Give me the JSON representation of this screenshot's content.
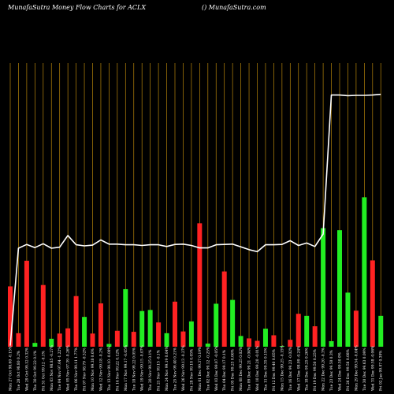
{
  "title_left": "MunafaSutra  Money Flow  Charts for ACLX",
  "title_right": "() MunafaSutra.com",
  "chart_data": {
    "type": "bar",
    "title": "MunafaSutra  Money Flow  Charts for ACLX",
    "subtitle": "() MunafaSutra.com",
    "ylim": [
      0,
      100
    ],
    "grid": true,
    "colors": {
      "up": "#22ee22",
      "down": "#ff2222",
      "line": "#ffffff",
      "grid": "#b8860b",
      "bg": "#000000"
    },
    "categories": [
      "Fri 02 Jan 99.97 0.39%",
      "Wed 31 Dec 99.58 -0.06%",
      "Tue 30 Dec 99.63 0.09%",
      "Mon 29 Dec 99.54 -0.04%",
      "Fri 26 Dec 99.58 0.08%",
      "Wed 24 Dec 99.50 0%",
      "Tue 23 Dec 99.50 0.3%",
      "Mon 22 Dec 99.20 -0.3%",
      "Fri 19 Dec 99.50 0.25%",
      "Thu 18 Dec 99.25 0.26%",
      "Wed 17 Dec 98.99 -0.24%",
      "Tue 16 Dec 99.23 -0.02%",
      "Mon 15 Dec 99.25 -0.15%",
      "Fri 12 Dec 99.40 0.05%",
      "Thu 11 Dec 99.35 0.15%",
      "Wed 10 Dec 99.20 -0.01%",
      "Tue 09 Dec 99.21 -0.04%",
      "Mon 08 Dec 99.25 0.02%",
      "Fri 05 Dec 99.23 0.06%",
      "Thu 04 Dec 99.17 0.1%",
      "Wed 03 Dec 99.07 -0.05%",
      "Tue 02 Dec 99.12 -0.25%",
      "Mon 01 Dec 99.37 0.19%",
      "Fri 28 Nov 99.18 0.05%",
      "Wed 26 Nov 99.13 -0.27%",
      "Tue 25 Nov 99.40 0.21%",
      "Mon 24 Nov 99.19 0.04%",
      "Fri 21 Nov 99.15 -0.1%",
      "Thu 20 Nov 99.25 0.1%",
      "Wed 19 Nov 99.15 -0.07%",
      "Tue 18 Nov 99.22 0.05%",
      "Mon 17 Nov 99.17 -0.05%",
      "Fri 14 Nov 99.22 0.12%",
      "Thu 13 Nov 99.10 -0.08%",
      "Wed 12 Nov 99.18 -0.2%",
      "Mon 10 Nov 99.38 0.6%",
      "Fri 07 Nov 98.79 -0.32%",
      "Thu 06 Nov 99.11 1.77%",
      "Wed 05 Nov 97.39 -0.26%",
      "Tue 04 Nov 97.64 -1.22%",
      "Mon 03 Nov 98.85 -0.27%",
      "Fri 31 Oct 99.12 -0.1%",
      "Thu 30 Oct 99.22 0.1%",
      "Wed 29 Oct 99.12 0.32%",
      "Tue 28 Oct 98.80 0.2%",
      "Mon 27 Oct 98.60 -0.15%"
    ],
    "series": [
      {
        "type": "bar",
        "colors": [
          "green",
          "red",
          "green",
          "red",
          "green",
          "green",
          "green",
          "green",
          "red",
          "green",
          "red",
          "red",
          "green",
          "red",
          "green",
          "red",
          "red",
          "green",
          "green",
          "red",
          "green",
          "green",
          "red",
          "green",
          "red",
          "red",
          "green",
          "red",
          "green",
          "green",
          "red",
          "green",
          "red",
          "green",
          "red",
          "red",
          "green",
          "red",
          "red",
          "red",
          "green",
          "red",
          "green",
          "red",
          "red",
          "red"
        ],
        "values": [
          8.9,
          24.9,
          43.1,
          10.4,
          15.6,
          33.6,
          1.6,
          34.2,
          5.9,
          8.9,
          9.5,
          2.0,
          0.2,
          3.3,
          5.2,
          1.7,
          2.4,
          3.1,
          13.5,
          21.7,
          12.4,
          0.9,
          35.6,
          7.3,
          4.4,
          13.0,
          3.9,
          7.0,
          10.6,
          10.3,
          4.3,
          16.6,
          4.6,
          0.8,
          12.5,
          3.8,
          8.6,
          14.6,
          5.3,
          3.8,
          2.3,
          17.8,
          1.1,
          24.8,
          3.9,
          17.4
        ]
      },
      {
        "type": "line",
        "values": [
          72.8,
          72.6,
          72.5,
          72.5,
          72.4,
          72.6,
          72.6,
          32.5,
          28.9,
          29.9,
          29.2,
          30.6,
          29.5,
          29.4,
          29.4,
          27.4,
          28.0,
          28.8,
          29.6,
          29.5,
          29.4,
          28.5,
          28.5,
          29.2,
          29.6,
          29.5,
          28.9,
          29.4,
          29.4,
          29.2,
          29.4,
          29.4,
          29.6,
          29.6,
          30.8,
          29.3,
          29.1,
          29.4,
          32.1,
          28.7,
          28.4,
          29.7,
          28.6,
          29.5,
          28.4,
          0.3
        ]
      }
    ]
  }
}
